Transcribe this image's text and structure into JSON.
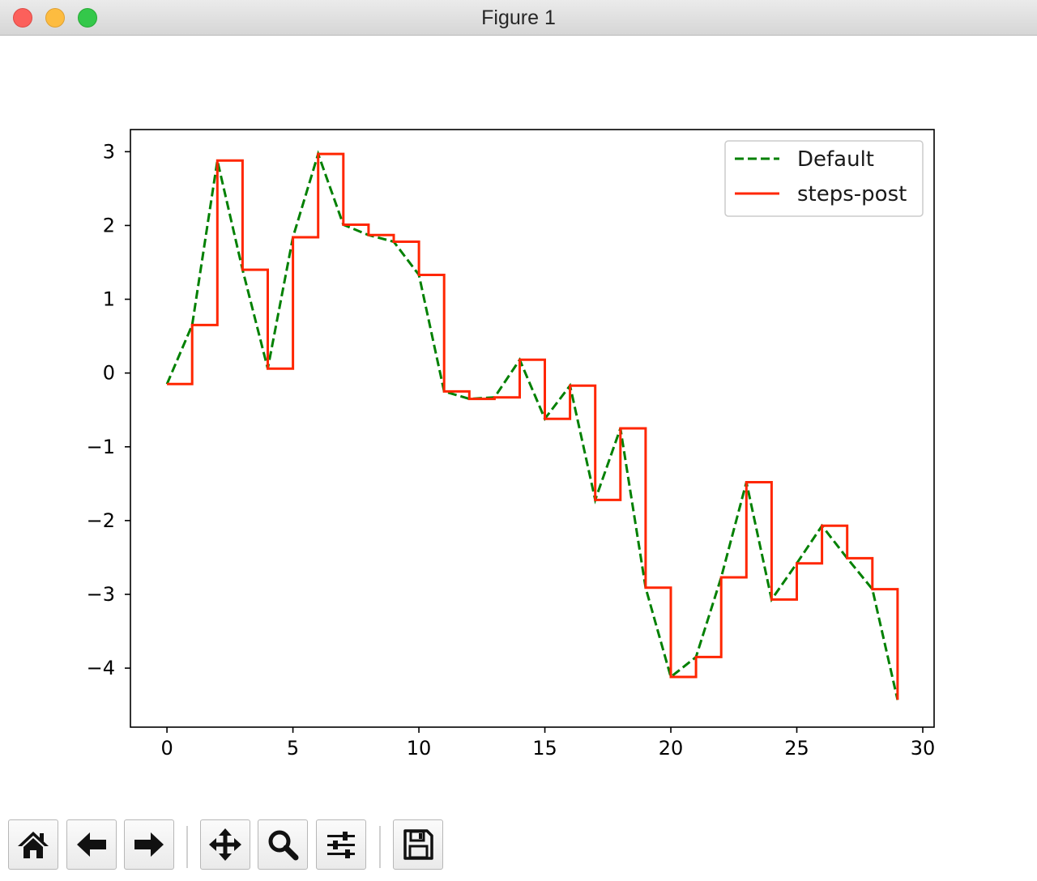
{
  "window": {
    "title": "Figure 1"
  },
  "toolbar": {
    "buttons": [
      {
        "name": "home-button",
        "icon": "home-icon"
      },
      {
        "name": "back-button",
        "icon": "arrow-left-icon"
      },
      {
        "name": "forward-button",
        "icon": "arrow-right-icon"
      },
      {
        "name": "pan-button",
        "icon": "move-icon"
      },
      {
        "name": "zoom-button",
        "icon": "magnifier-icon"
      },
      {
        "name": "configure-subplots-button",
        "icon": "sliders-icon"
      },
      {
        "name": "save-button",
        "icon": "floppy-disk-icon"
      }
    ]
  },
  "chart_data": {
    "type": "line",
    "title": "",
    "xlabel": "",
    "ylabel": "",
    "xlim": [
      -1.45,
      30.45
    ],
    "ylim": [
      -4.8,
      3.3
    ],
    "xticks": [
      0,
      5,
      10,
      15,
      20,
      25,
      30
    ],
    "yticks": [
      3,
      2,
      1,
      0,
      -1,
      -2,
      -3,
      -4
    ],
    "xtick_labels": [
      "0",
      "5",
      "10",
      "15",
      "20",
      "25",
      "30"
    ],
    "ytick_labels": [
      "3",
      "2",
      "1",
      "0",
      "−1",
      "−2",
      "−3",
      "−4"
    ],
    "grid": false,
    "legend_position": "top-right",
    "x": [
      0,
      1,
      2,
      3,
      4,
      5,
      6,
      7,
      8,
      9,
      10,
      11,
      12,
      13,
      14,
      15,
      16,
      17,
      18,
      19,
      20,
      21,
      22,
      23,
      24,
      25,
      26,
      27,
      28,
      29
    ],
    "series": [
      {
        "name": "Default",
        "style": "dashed",
        "drawstyle": "default",
        "color": "#008000",
        "values": [
          -0.15,
          0.65,
          2.88,
          1.4,
          0.06,
          1.84,
          2.97,
          2.01,
          1.87,
          1.78,
          1.33,
          -0.25,
          -0.35,
          -0.33,
          0.18,
          -0.62,
          -0.17,
          -1.72,
          -0.75,
          -2.91,
          -4.12,
          -3.85,
          -2.77,
          -1.48,
          -3.07,
          -2.58,
          -2.07,
          -2.51,
          -2.93,
          -4.43
        ]
      },
      {
        "name": "steps-post",
        "style": "solid",
        "drawstyle": "steps-post",
        "color": "#ff2600",
        "values": [
          -0.15,
          0.65,
          2.88,
          1.4,
          0.06,
          1.84,
          2.97,
          2.01,
          1.87,
          1.78,
          1.33,
          -0.25,
          -0.35,
          -0.33,
          0.18,
          -0.62,
          -0.17,
          -1.72,
          -0.75,
          -2.91,
          -4.12,
          -3.85,
          -2.77,
          -1.48,
          -3.07,
          -2.58,
          -2.07,
          -2.51,
          -2.93,
          -4.43
        ]
      }
    ]
  }
}
